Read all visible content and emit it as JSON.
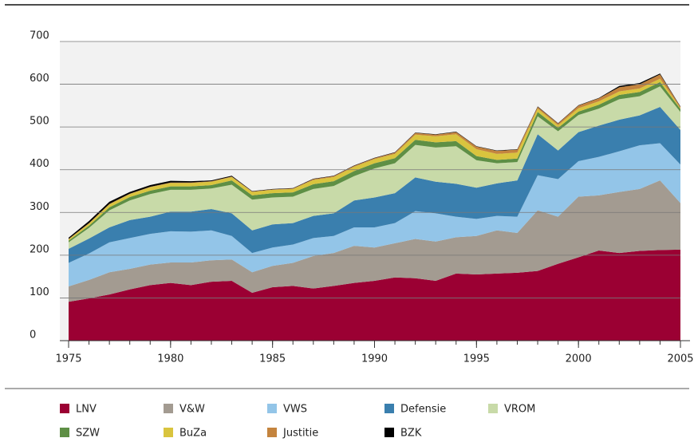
{
  "chart_data": {
    "type": "stacked_area",
    "x": [
      1975,
      1976,
      1977,
      1978,
      1979,
      1980,
      1981,
      1982,
      1983,
      1984,
      1985,
      1986,
      1987,
      1988,
      1989,
      1990,
      1991,
      1992,
      1993,
      1994,
      1995,
      1996,
      1997,
      1998,
      1999,
      2000,
      2001,
      2002,
      2003,
      2004,
      2005
    ],
    "xlim": [
      1975,
      2005
    ],
    "xticks": [
      1975,
      1980,
      1985,
      1990,
      1995,
      2000,
      2005
    ],
    "ylim": [
      0,
      700
    ],
    "yticks": [
      0,
      100,
      200,
      300,
      400,
      500,
      600,
      700
    ],
    "grid": true,
    "legend": "bottom",
    "series": [
      {
        "name": "LNV",
        "color": "#9b0033",
        "values": [
          91,
          99,
          108,
          120,
          130,
          135,
          130,
          138,
          140,
          112,
          125,
          128,
          122,
          128,
          135,
          140,
          148,
          146,
          140,
          157,
          155,
          157,
          159,
          163,
          180,
          195,
          211,
          205,
          210,
          212,
          213
        ]
      },
      {
        "name": "V&W",
        "color": "#a39b91",
        "values": [
          36,
          43,
          52,
          48,
          48,
          48,
          53,
          50,
          50,
          48,
          50,
          54,
          76,
          77,
          87,
          78,
          80,
          92,
          92,
          85,
          90,
          101,
          93,
          142,
          110,
          142,
          129,
          143,
          145,
          163,
          109
        ]
      },
      {
        "name": "VWS",
        "color": "#93c5e8",
        "values": [
          55,
          62,
          70,
          72,
          72,
          73,
          72,
          70,
          55,
          45,
          43,
          43,
          42,
          40,
          43,
          47,
          47,
          65,
          66,
          48,
          40,
          34,
          38,
          82,
          88,
          83,
          90,
          95,
          102,
          87,
          90
        ]
      },
      {
        "name": "Defensie",
        "color": "#3a7fae",
        "values": [
          33,
          35,
          35,
          42,
          40,
          46,
          47,
          50,
          53,
          53,
          54,
          50,
          52,
          53,
          63,
          70,
          70,
          79,
          74,
          77,
          73,
          76,
          85,
          96,
          67,
          68,
          73,
          74,
          70,
          85,
          81
        ]
      },
      {
        "name": "VROM",
        "color": "#c8daa8",
        "values": [
          15,
          25,
          40,
          46,
          53,
          51,
          51,
          48,
          67,
          72,
          63,
          62,
          63,
          64,
          57,
          68,
          70,
          76,
          80,
          88,
          64,
          47,
          43,
          42,
          45,
          40,
          40,
          48,
          45,
          48,
          42
        ]
      },
      {
        "name": "SZW",
        "color": "#5e8f45",
        "values": [
          4,
          5,
          7,
          8,
          8,
          8,
          8,
          8,
          10,
          10,
          10,
          10,
          11,
          11,
          12,
          12,
          12,
          12,
          12,
          12,
          10,
          8,
          8,
          10,
          8,
          8,
          9,
          10,
          10,
          10,
          7
        ]
      },
      {
        "name": "BuZa",
        "color": "#d9c43e",
        "values": [
          3,
          5,
          7,
          7,
          8,
          8,
          8,
          8,
          8,
          8,
          8,
          8,
          10,
          10,
          10,
          10,
          10,
          12,
          14,
          16,
          16,
          14,
          14,
          8,
          6,
          8,
          8,
          8,
          8,
          8,
          2
        ]
      },
      {
        "name": "Justitie",
        "color": "#c4843e",
        "values": [
          1,
          1,
          1,
          1,
          1,
          1,
          1,
          1,
          1,
          1,
          1,
          1,
          2,
          2,
          2,
          2,
          3,
          4,
          4,
          5,
          6,
          7,
          7,
          4,
          4,
          6,
          7,
          10,
          10,
          10,
          3
        ]
      },
      {
        "name": "BZK",
        "color": "#000000",
        "values": [
          3,
          5,
          5,
          4,
          4,
          4,
          3,
          2,
          2,
          1,
          1,
          1,
          1,
          1,
          1,
          1,
          1,
          1,
          1,
          1,
          1,
          1,
          1,
          1,
          1,
          1,
          1,
          3,
          3,
          2,
          1
        ]
      }
    ]
  }
}
